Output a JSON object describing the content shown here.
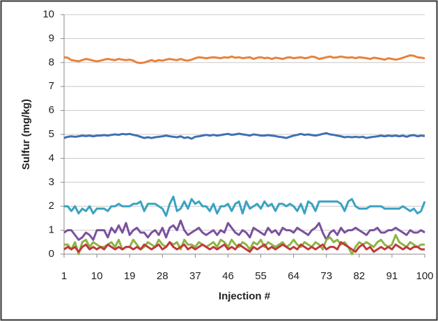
{
  "chart_data": {
    "type": "line",
    "x_label": "Injection #",
    "y_label": "Sulfur (mg/kg)",
    "x": [
      1,
      2,
      3,
      4,
      5,
      6,
      7,
      8,
      9,
      10,
      11,
      12,
      13,
      14,
      15,
      16,
      17,
      18,
      19,
      20,
      21,
      22,
      23,
      24,
      25,
      26,
      27,
      28,
      29,
      30,
      31,
      32,
      33,
      34,
      35,
      36,
      37,
      38,
      39,
      40,
      41,
      42,
      43,
      44,
      45,
      46,
      47,
      48,
      49,
      50,
      51,
      52,
      53,
      54,
      55,
      56,
      57,
      58,
      59,
      60,
      61,
      62,
      63,
      64,
      65,
      66,
      67,
      68,
      69,
      70,
      71,
      72,
      73,
      74,
      75,
      76,
      77,
      78,
      79,
      80,
      81,
      82,
      83,
      84,
      85,
      86,
      87,
      88,
      89,
      90,
      91,
      92,
      93,
      94,
      95,
      96,
      97,
      98,
      99,
      100
    ],
    "xlim": [
      1,
      100
    ],
    "xticks": [
      1,
      10,
      19,
      28,
      37,
      46,
      55,
      64,
      73,
      82,
      91,
      100
    ],
    "ylim": [
      0,
      10
    ],
    "yticks": [
      0,
      1,
      2,
      3,
      4,
      5,
      6,
      7,
      8,
      9,
      10
    ],
    "grid": true,
    "series": [
      {
        "color": "#e8823a",
        "values": [
          8.22,
          8.2,
          8.1,
          8.08,
          8.05,
          8.1,
          8.15,
          8.12,
          8.08,
          8.05,
          8.08,
          8.12,
          8.15,
          8.12,
          8.1,
          8.15,
          8.12,
          8.1,
          8.12,
          8.08,
          8.0,
          7.98,
          8.0,
          8.05,
          8.1,
          8.05,
          8.1,
          8.08,
          8.12,
          8.15,
          8.12,
          8.1,
          8.15,
          8.1,
          8.08,
          8.12,
          8.18,
          8.22,
          8.2,
          8.18,
          8.2,
          8.22,
          8.2,
          8.18,
          8.22,
          8.2,
          8.25,
          8.2,
          8.22,
          8.18,
          8.2,
          8.22,
          8.15,
          8.2,
          8.22,
          8.18,
          8.2,
          8.15,
          8.2,
          8.18,
          8.15,
          8.2,
          8.22,
          8.18,
          8.2,
          8.22,
          8.18,
          8.2,
          8.25,
          8.22,
          8.15,
          8.18,
          8.22,
          8.25,
          8.2,
          8.22,
          8.25,
          8.22,
          8.2,
          8.22,
          8.18,
          8.22,
          8.2,
          8.18,
          8.15,
          8.2,
          8.18,
          8.15,
          8.12,
          8.18,
          8.15,
          8.12,
          8.15,
          8.2,
          8.25,
          8.3,
          8.28,
          8.22,
          8.2,
          8.18
        ]
      },
      {
        "color": "#3f6fb3",
        "values": [
          4.85,
          4.9,
          4.92,
          4.9,
          4.92,
          4.95,
          4.93,
          4.95,
          4.92,
          4.95,
          4.95,
          4.97,
          4.95,
          4.98,
          5.0,
          4.98,
          5.02,
          5.0,
          5.02,
          4.98,
          4.95,
          4.9,
          4.85,
          4.88,
          4.85,
          4.88,
          4.9,
          4.92,
          4.95,
          4.92,
          4.9,
          4.88,
          4.92,
          4.85,
          4.88,
          4.82,
          4.9,
          4.92,
          4.95,
          4.98,
          4.95,
          4.98,
          4.95,
          4.97,
          5.0,
          5.02,
          4.98,
          5.0,
          5.03,
          5.0,
          4.98,
          4.95,
          5.0,
          4.98,
          4.95,
          4.95,
          4.97,
          4.95,
          4.93,
          4.9,
          4.88,
          4.85,
          4.9,
          4.95,
          4.98,
          5.02,
          4.98,
          5.0,
          4.97,
          4.95,
          4.98,
          5.02,
          5.05,
          5.0,
          4.98,
          4.95,
          4.92,
          4.88,
          4.9,
          4.88,
          4.9,
          4.88,
          4.9,
          4.85,
          4.88,
          4.9,
          4.92,
          4.95,
          4.92,
          4.95,
          4.93,
          4.95,
          4.92,
          4.95,
          4.9,
          4.95,
          4.97,
          4.92,
          4.95,
          4.93
        ]
      },
      {
        "color": "#3aa2c2",
        "values": [
          2.0,
          2.0,
          1.8,
          2.0,
          1.7,
          1.9,
          1.8,
          2.0,
          1.7,
          1.9,
          1.9,
          1.9,
          1.8,
          2.0,
          2.0,
          2.1,
          2.0,
          2.0,
          2.0,
          2.1,
          2.1,
          2.2,
          1.8,
          2.1,
          2.1,
          2.1,
          2.0,
          1.9,
          1.6,
          2.1,
          2.4,
          1.8,
          1.9,
          2.2,
          1.9,
          2.3,
          2.1,
          2.2,
          2.0,
          2.0,
          1.8,
          2.1,
          1.7,
          2.0,
          2.0,
          2.1,
          1.8,
          2.1,
          2.2,
          1.7,
          2.2,
          1.9,
          2.0,
          2.1,
          1.9,
          2.2,
          2.0,
          2.1,
          1.8,
          2.1,
          2.1,
          2.0,
          2.1,
          2.0,
          1.8,
          2.1,
          1.7,
          2.2,
          2.1,
          1.8,
          2.2,
          2.2,
          2.2,
          2.2,
          2.2,
          2.2,
          2.1,
          1.8,
          2.2,
          2.3,
          2.0,
          1.9,
          1.9,
          1.9,
          2.0,
          2.0,
          2.0,
          2.0,
          1.9,
          1.9,
          1.9,
          1.9,
          1.9,
          2.0,
          1.9,
          1.8,
          1.9,
          1.7,
          1.8,
          2.2
        ]
      },
      {
        "color": "#7a519e",
        "values": [
          0.9,
          1.0,
          1.0,
          0.8,
          0.6,
          0.7,
          0.9,
          0.8,
          0.6,
          1.0,
          1.0,
          1.0,
          0.7,
          1.1,
          0.9,
          1.2,
          0.9,
          1.3,
          0.8,
          1.0,
          1.1,
          0.9,
          0.9,
          0.7,
          0.9,
          1.0,
          0.8,
          1.1,
          0.7,
          1.1,
          1.2,
          1.0,
          1.4,
          1.0,
          0.8,
          0.9,
          1.0,
          1.1,
          0.9,
          0.8,
          0.9,
          1.0,
          0.8,
          1.0,
          0.9,
          1.3,
          1.1,
          0.9,
          0.8,
          1.0,
          0.9,
          0.7,
          1.1,
          1.0,
          0.9,
          0.8,
          1.1,
          0.9,
          1.0,
          0.8,
          1.1,
          1.0,
          1.0,
          0.9,
          1.1,
          1.0,
          0.9,
          0.8,
          1.0,
          1.1,
          1.3,
          0.9,
          0.6,
          0.9,
          1.0,
          0.8,
          1.1,
          0.9,
          1.0,
          1.0,
          1.1,
          1.0,
          0.9,
          0.8,
          1.0,
          1.0,
          1.1,
          0.9,
          0.9,
          1.0,
          1.0,
          1.1,
          1.0,
          0.9,
          0.8,
          1.0,
          0.9,
          0.9,
          1.0,
          0.9
        ]
      },
      {
        "color": "#8db443",
        "values": [
          0.4,
          0.4,
          0.2,
          0.5,
          0.0,
          0.5,
          0.6,
          0.3,
          0.5,
          0.4,
          0.3,
          0.3,
          0.4,
          0.5,
          0.3,
          0.6,
          0.2,
          0.3,
          0.3,
          0.6,
          0.4,
          0.2,
          0.3,
          0.5,
          0.4,
          0.3,
          0.6,
          0.4,
          0.3,
          0.5,
          0.4,
          0.5,
          0.2,
          0.6,
          0.4,
          0.4,
          0.3,
          0.5,
          0.4,
          0.3,
          0.4,
          0.5,
          0.3,
          0.6,
          0.5,
          0.3,
          0.6,
          0.4,
          0.3,
          0.5,
          0.4,
          0.2,
          0.5,
          0.4,
          0.6,
          0.3,
          0.5,
          0.4,
          0.3,
          0.4,
          0.5,
          0.3,
          0.4,
          0.6,
          0.4,
          0.3,
          0.5,
          0.4,
          0.3,
          0.5,
          0.4,
          0.2,
          0.6,
          0.7,
          0.5,
          0.6,
          0.4,
          0.5,
          0.3,
          0.0,
          0.3,
          0.5,
          0.4,
          0.5,
          0.4,
          0.3,
          0.5,
          0.6,
          0.4,
          0.3,
          0.4,
          0.8,
          0.5,
          0.4,
          0.3,
          0.5,
          0.4,
          0.3,
          0.4,
          0.4
        ]
      },
      {
        "color": "#c0393b",
        "values": [
          0.2,
          0.3,
          0.2,
          0.3,
          0.1,
          0.3,
          0.4,
          0.2,
          0.3,
          0.2,
          0.3,
          0.2,
          0.4,
          0.3,
          0.2,
          0.3,
          0.2,
          0.3,
          0.3,
          0.2,
          0.3,
          0.2,
          0.4,
          0.3,
          0.2,
          0.3,
          0.4,
          0.2,
          0.3,
          0.5,
          0.3,
          0.2,
          0.3,
          0.4,
          0.2,
          0.3,
          0.2,
          0.3,
          0.4,
          0.3,
          0.2,
          0.3,
          0.2,
          0.3,
          0.4,
          0.2,
          0.3,
          0.2,
          0.4,
          0.3,
          0.2,
          0.1,
          0.3,
          0.2,
          0.3,
          0.4,
          0.2,
          0.3,
          0.2,
          0.3,
          0.4,
          0.3,
          0.2,
          0.3,
          0.2,
          0.4,
          0.3,
          0.2,
          0.3,
          0.2,
          0.3,
          0.4,
          0.2,
          0.3,
          0.3,
          0.2,
          0.5,
          0.4,
          0.3,
          0.2,
          0.1,
          0.3,
          0.4,
          0.2,
          0.3,
          0.1,
          0.2,
          0.3,
          0.2,
          0.3,
          0.2,
          0.4,
          0.3,
          0.2,
          0.3,
          0.2,
          0.3,
          0.3,
          0.2,
          0.2
        ]
      }
    ]
  }
}
